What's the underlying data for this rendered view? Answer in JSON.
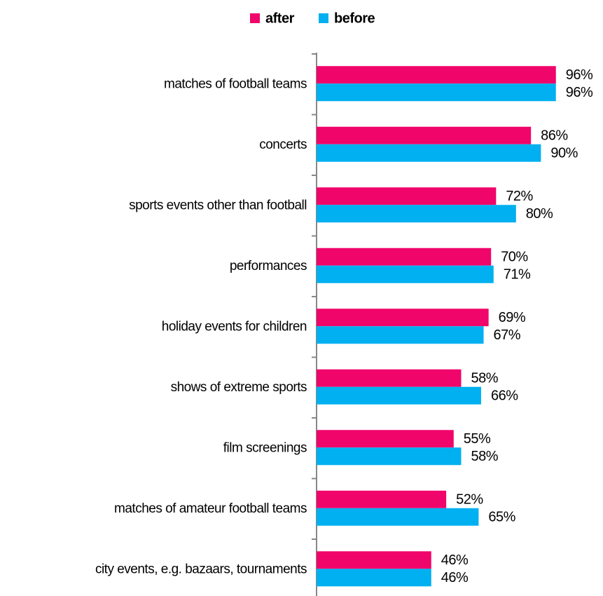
{
  "chart_data": {
    "type": "bar",
    "orientation": "horizontal",
    "categories": [
      "matches of football teams",
      "concerts",
      "sports events other than football",
      "performances",
      "holiday events for children",
      "shows of extreme sports",
      "film screenings",
      "matches of amateur football teams",
      "city events, e.g. bazaars, tournaments"
    ],
    "series": [
      {
        "name": "after",
        "color": "#f0056a",
        "values": [
          96,
          86,
          72,
          70,
          69,
          58,
          55,
          52,
          46
        ],
        "value_labels": [
          "96%",
          "86%",
          "72%",
          "70%",
          "69%",
          "58%",
          "55%",
          "52%",
          "46%"
        ]
      },
      {
        "name": "before",
        "color": "#00b0f0",
        "values": [
          96,
          90,
          80,
          71,
          67,
          66,
          58,
          65,
          46
        ],
        "value_labels": [
          "96%",
          "90%",
          "80%",
          "71%",
          "67%",
          "66%",
          "58%",
          "65%",
          "46%"
        ]
      }
    ],
    "legend": "top"
  }
}
